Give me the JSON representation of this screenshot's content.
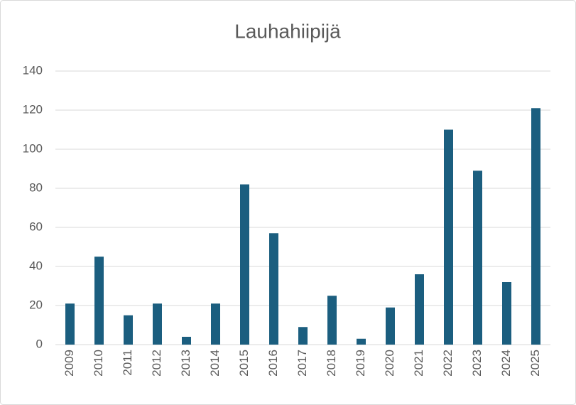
{
  "chart_data": {
    "type": "bar",
    "title": "Lauhahiipijä",
    "categories": [
      "2009",
      "2010",
      "2011",
      "2012",
      "2013",
      "2014",
      "2015",
      "2016",
      "2017",
      "2018",
      "2019",
      "2020",
      "2021",
      "2022",
      "2023",
      "2024",
      "2025"
    ],
    "values": [
      21,
      45,
      15,
      21,
      4,
      21,
      82,
      57,
      9,
      25,
      3,
      19,
      36,
      110,
      89,
      32,
      121
    ],
    "color": "#1b5e7f",
    "ylim": [
      0,
      140
    ],
    "yticks": [
      0,
      20,
      40,
      60,
      80,
      100,
      120,
      140
    ],
    "grid": true
  }
}
